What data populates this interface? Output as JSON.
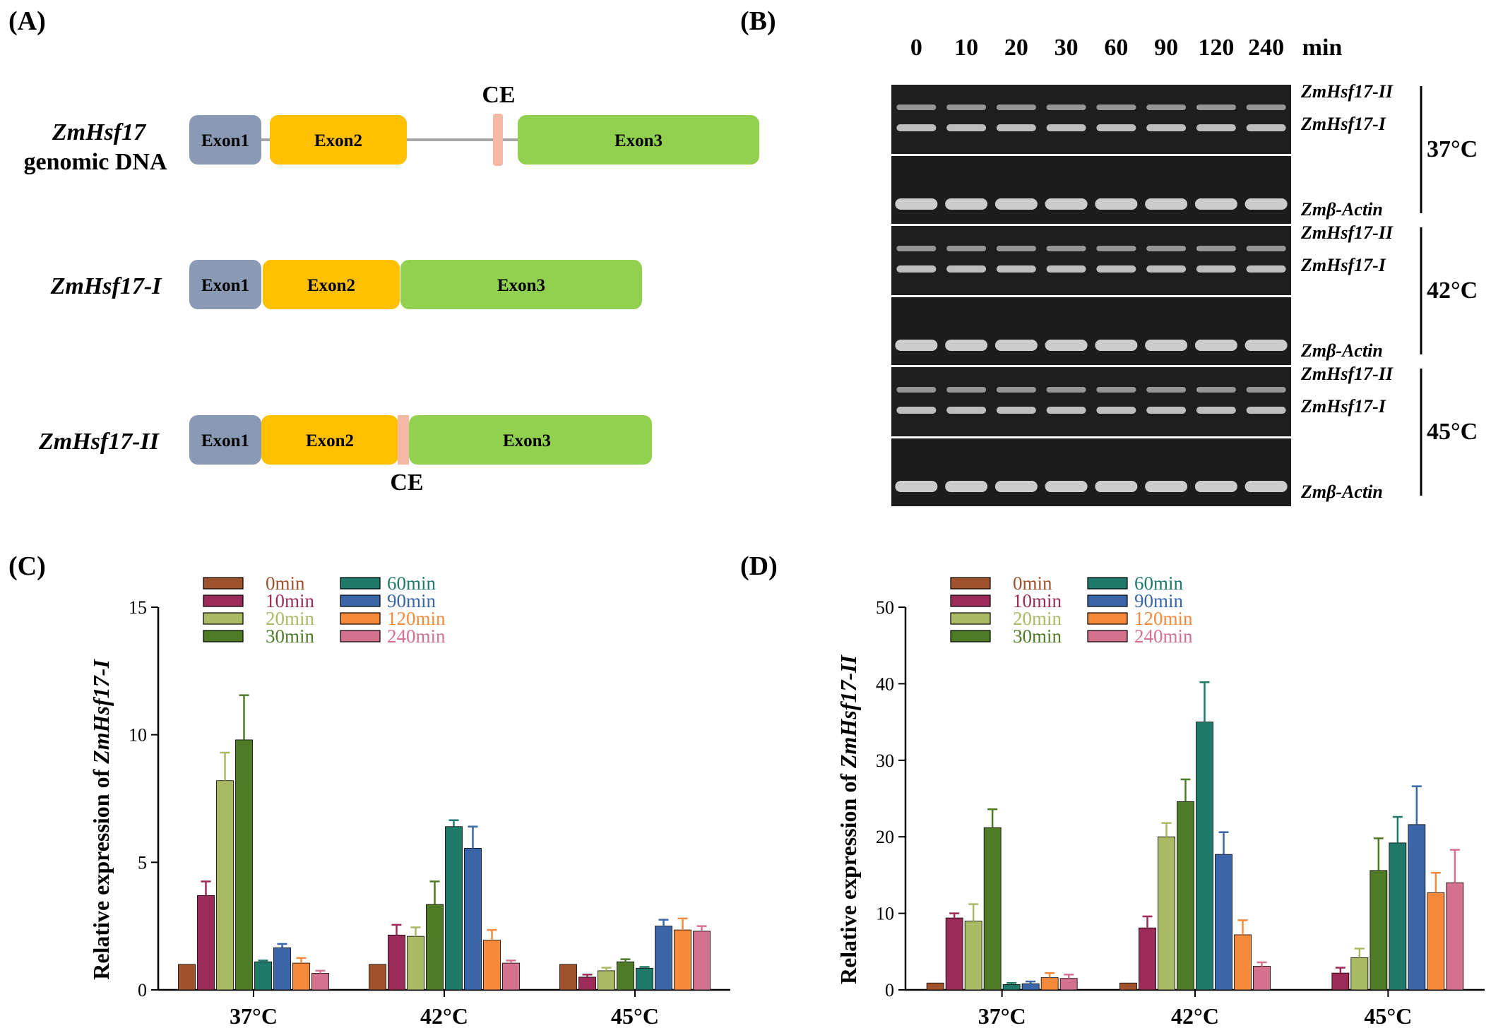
{
  "panels": {
    "a": "(A)",
    "b": "(B)",
    "c": "(C)",
    "d": "(D)"
  },
  "panel_a": {
    "genomic": {
      "name": "ZmHsf17",
      "sub": "genomic DNA",
      "exon1": "Exon1",
      "exon2": "Exon2",
      "exon3": "Exon3",
      "ce": "CE"
    },
    "isoform1": {
      "name": "ZmHsf17-I",
      "exon1": "Exon1",
      "exon2": "Exon2",
      "exon3": "Exon3"
    },
    "isoform2": {
      "name": "ZmHsf17-II",
      "exon1": "Exon1",
      "exon2": "Exon2",
      "exon3": "Exon3",
      "ce": "CE"
    },
    "colors": {
      "exon1": "#8a9ab4",
      "exon2": "#ffc000",
      "exon3": "#92d050",
      "ce": "#f4b8a4",
      "intron": "#a6a6a6"
    }
  },
  "panel_b": {
    "timepoints": [
      "0",
      "10",
      "20",
      "30",
      "60",
      "90",
      "120",
      "240"
    ],
    "unit": "min",
    "groups": [
      {
        "temp": "37°C",
        "band1": "ZmHsf17-II",
        "band2": "ZmHsf17-I",
        "actin": "Zmβ-Actin"
      },
      {
        "temp": "42°C",
        "band1": "ZmHsf17-II",
        "band2": "ZmHsf17-I",
        "actin": "Zmβ-Actin"
      },
      {
        "temp": "45°C",
        "band1": "ZmHsf17-II",
        "band2": "ZmHsf17-I",
        "actin": "Zmβ-Actin"
      }
    ]
  },
  "chart_data": [
    {
      "type": "bar",
      "ylabel_prefix": "Relative expression of ",
      "ylabel_gene": "ZmHsf17-I",
      "ylim": [
        0,
        15
      ],
      "yticks": [
        "0",
        "5",
        "10",
        "15"
      ],
      "categories": [
        "37°C",
        "42°C",
        "45°C"
      ],
      "legend_position": "top-left",
      "series": [
        {
          "name": "0min",
          "color": "#a0522d",
          "values": [
            1.0,
            1.0,
            1.0
          ],
          "errors": [
            0,
            0,
            0
          ]
        },
        {
          "name": "10min",
          "color": "#9b2c58",
          "values": [
            3.7,
            2.15,
            0.5
          ],
          "errors": [
            0.55,
            0.4,
            0.1
          ]
        },
        {
          "name": "20min",
          "color": "#a9b964",
          "values": [
            8.2,
            2.1,
            0.75
          ],
          "errors": [
            1.1,
            0.35,
            0.12
          ]
        },
        {
          "name": "30min",
          "color": "#4f7b27",
          "values": [
            9.8,
            3.35,
            1.1
          ],
          "errors": [
            1.75,
            0.9,
            0.1
          ]
        },
        {
          "name": "60min",
          "color": "#1f7a6a",
          "values": [
            1.1,
            6.4,
            0.85
          ],
          "errors": [
            0.05,
            0.25,
            0.05
          ]
        },
        {
          "name": "90min",
          "color": "#3a65a8",
          "values": [
            1.65,
            5.55,
            2.5
          ],
          "errors": [
            0.15,
            0.85,
            0.25
          ]
        },
        {
          "name": "120min",
          "color": "#f58a3c",
          "values": [
            1.05,
            1.95,
            2.35
          ],
          "errors": [
            0.2,
            0.4,
            0.45
          ]
        },
        {
          "name": "240min",
          "color": "#d4718f",
          "values": [
            0.65,
            1.05,
            2.3
          ],
          "errors": [
            0.1,
            0.1,
            0.2
          ]
        }
      ]
    },
    {
      "type": "bar",
      "ylabel_prefix": "Relative expression of ",
      "ylabel_gene": "ZmHsf17-II",
      "ylim": [
        0,
        50
      ],
      "yticks": [
        "0",
        "10",
        "20",
        "30",
        "40",
        "50"
      ],
      "categories": [
        "37°C",
        "42°C",
        "45°C"
      ],
      "legend_position": "top-left",
      "series": [
        {
          "name": "0min",
          "color": "#a0522d",
          "values": [
            0.9,
            0.9,
            0
          ],
          "errors": [
            0,
            0,
            0
          ]
        },
        {
          "name": "10min",
          "color": "#9b2c58",
          "values": [
            9.4,
            8.1,
            2.2
          ],
          "errors": [
            0.6,
            1.5,
            0.7
          ]
        },
        {
          "name": "20min",
          "color": "#a9b964",
          "values": [
            9.0,
            20.0,
            4.2
          ],
          "errors": [
            2.2,
            1.8,
            1.2
          ]
        },
        {
          "name": "30min",
          "color": "#4f7b27",
          "values": [
            21.2,
            24.6,
            15.6
          ],
          "errors": [
            2.4,
            2.9,
            4.2
          ]
        },
        {
          "name": "60min",
          "color": "#1f7a6a",
          "values": [
            0.7,
            35.0,
            19.2
          ],
          "errors": [
            0.2,
            5.2,
            3.4
          ]
        },
        {
          "name": "90min",
          "color": "#3a65a8",
          "values": [
            0.8,
            17.7,
            21.6
          ],
          "errors": [
            0.3,
            2.9,
            5.0
          ]
        },
        {
          "name": "120min",
          "color": "#f58a3c",
          "values": [
            1.6,
            7.2,
            12.7
          ],
          "errors": [
            0.6,
            1.9,
            2.6
          ]
        },
        {
          "name": "240min",
          "color": "#d4718f",
          "values": [
            1.5,
            3.1,
            14.0
          ],
          "errors": [
            0.5,
            0.5,
            4.3
          ]
        }
      ]
    }
  ]
}
